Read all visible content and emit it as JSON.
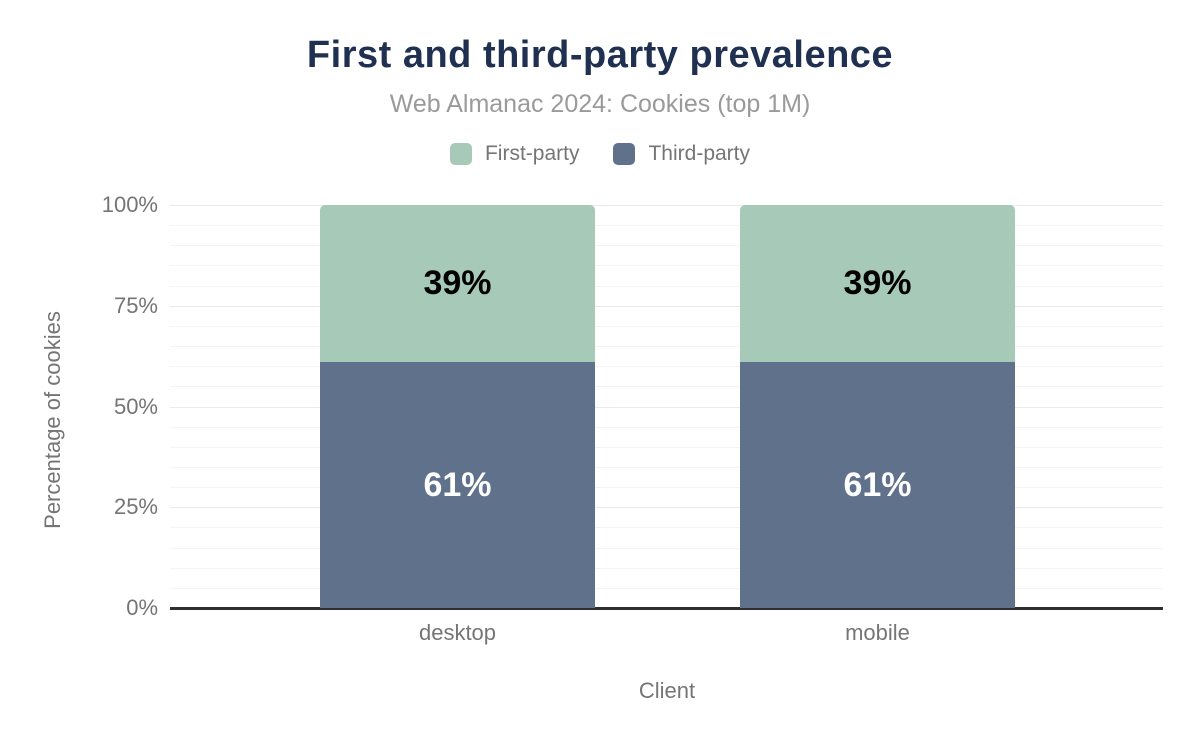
{
  "header": {
    "title": "First and third-party prevalence",
    "subtitle": "Web Almanac 2024: Cookies (top 1M)"
  },
  "chart_data": {
    "type": "bar",
    "stacked": true,
    "title": "First and third-party prevalence",
    "subtitle": "Web Almanac 2024: Cookies (top 1M)",
    "xlabel": "Client",
    "ylabel": "Percentage of cookies",
    "categories": [
      "desktop",
      "mobile"
    ],
    "series": [
      {
        "name": "Third-party",
        "color": "#60718c",
        "label_color": "#ffffff",
        "values": [
          61,
          61
        ],
        "data_labels": [
          "61%",
          "61%"
        ]
      },
      {
        "name": "First-party",
        "color": "#a6c9b8",
        "label_color": "#000000",
        "values": [
          39,
          39
        ],
        "data_labels": [
          "39%",
          "39%"
        ]
      }
    ],
    "legend": {
      "position": "top",
      "order": [
        "First-party",
        "Third-party"
      ]
    },
    "ylim": [
      0,
      100
    ],
    "y_ticks": [
      {
        "value": 0,
        "label": "0%"
      },
      {
        "value": 25,
        "label": "25%"
      },
      {
        "value": 50,
        "label": "50%"
      },
      {
        "value": 75,
        "label": "75%"
      },
      {
        "value": 100,
        "label": "100%"
      }
    ],
    "grid": {
      "minor_step_pct": 5,
      "major_step_pct": 25,
      "minor_color": "#f4f4f4",
      "major_color": "#eaeaea"
    },
    "axis_color": "#2e2e2e",
    "title_color": "#1f3050",
    "text_color": "#757575"
  }
}
